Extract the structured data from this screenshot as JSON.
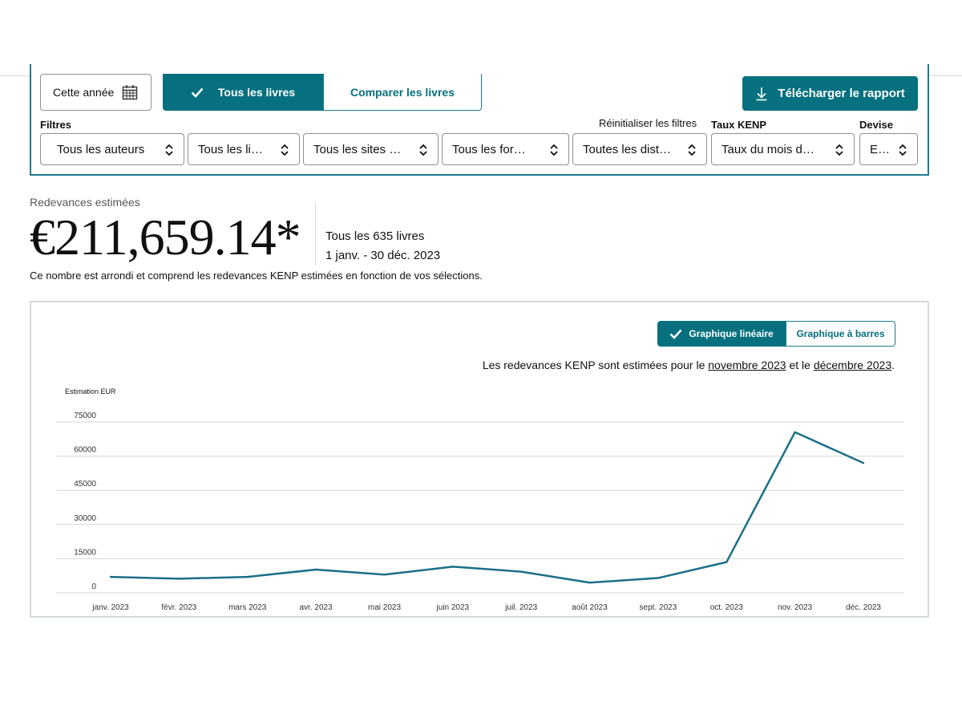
{
  "toolbar": {
    "date_button_label": "Cette année",
    "tab_all_books": "Tous les livres",
    "tab_compare_books": "Comparer les livres",
    "download_label": "Télécharger le rapport"
  },
  "filters": {
    "label": "Filtres",
    "reset_label": "Réinitialiser les filtres",
    "kenp_label": "Taux KENP",
    "currency_label": "Devise",
    "authors": "Tous les auteurs",
    "books": "Tous les li…",
    "sites": "Tous les sites …",
    "formats": "Tous les for…",
    "distributions": "Toutes les dist…",
    "kenp_rate": "Taux du mois d…",
    "currency": "E…"
  },
  "summary": {
    "label": "Redevances estimées",
    "amount": "€211,659.14*",
    "scope": "Tous les 635 livres",
    "date_range": "1 janv. - 30 déc. 2023",
    "note": "Ce nombre est arrondi et comprend les redevances KENP estimées en fonction de vos sélections."
  },
  "chart_controls": {
    "line_label": "Graphique linéaire",
    "bar_label": "Graphique à barres"
  },
  "kenp_note": {
    "prefix": "Les redevances KENP sont estimées pour le ",
    "month1": "novembre 2023",
    "middle": " et le ",
    "month2": "décembre 2023",
    "suffix": "."
  },
  "colors": {
    "accent": "#06707f",
    "line": "#1b6f88",
    "grid": "#d5d9d9"
  },
  "chart_data": {
    "type": "line",
    "title": "",
    "ylabel": "Estimation EUR",
    "xlabel": "",
    "categories": [
      "janv. 2023",
      "févr. 2023",
      "mars 2023",
      "avr. 2023",
      "mai 2023",
      "juin 2023",
      "juil. 2023",
      "août 2023",
      "sept. 2023",
      "oct. 2023",
      "nov. 2023",
      "déc. 2023"
    ],
    "yticks": [
      "75000",
      "60000",
      "45000",
      "30000",
      "15000",
      "0"
    ],
    "ylim": [
      0,
      75000
    ],
    "grid": true,
    "series": [
      {
        "values": [
          7000,
          6200,
          7000,
          10200,
          8000,
          11500,
          9300,
          4500,
          6500,
          13500,
          70500,
          57000
        ]
      }
    ]
  }
}
